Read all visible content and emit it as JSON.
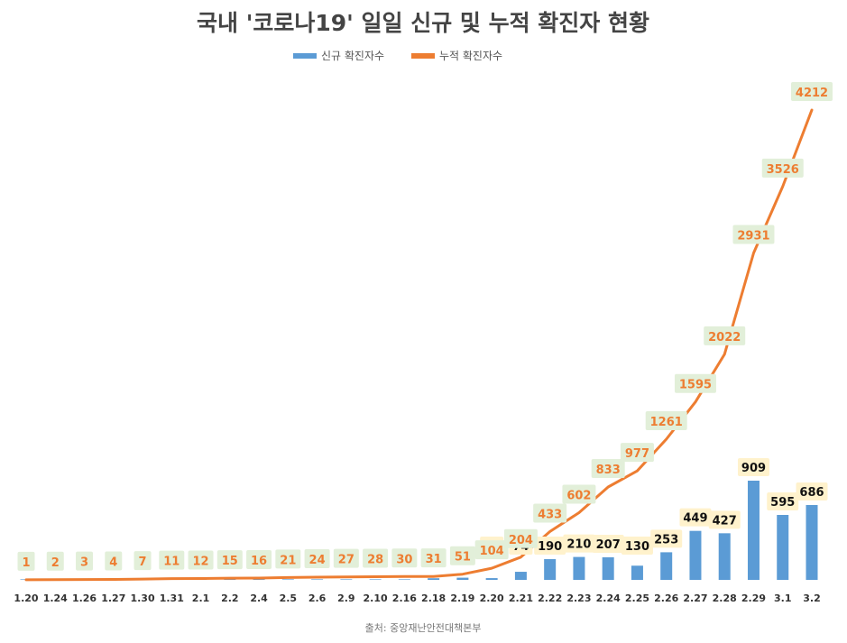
{
  "chart_data": {
    "type": "bar",
    "title": "국내 '코로나19' 일일 신규 및 누적 확진자 현황",
    "source": "출처: 중앙재난안전대책본부",
    "legend_position": "top-center",
    "grid": false,
    "categories": [
      "1.20",
      "1.24",
      "1.26",
      "1.27",
      "1.30",
      "1.31",
      "2.1",
      "2.2",
      "2.4",
      "2.5",
      "2.6",
      "2.9",
      "2.10",
      "2.16",
      "2.18",
      "2.19",
      "2.20",
      "2.21",
      "2.22",
      "2.23",
      "2.24",
      "2.25",
      "2.26",
      "2.27",
      "2.28",
      "2.29",
      "3.1",
      "3.2"
    ],
    "series": [
      {
        "name": "신규 확진자수",
        "kind": "bar",
        "color": "#5B9BD5",
        "values": [
          1,
          1,
          1,
          1,
          3,
          4,
          1,
          3,
          1,
          5,
          3,
          3,
          1,
          1,
          15,
          20,
          16,
          74,
          190,
          210,
          207,
          130,
          253,
          449,
          427,
          909,
          595,
          686
        ],
        "labels": [
          "",
          "",
          "",
          "",
          "",
          "",
          "",
          "",
          "",
          "",
          "",
          "",
          "",
          "",
          "",
          "",
          "16",
          "74",
          "190",
          "210",
          "207",
          "130",
          "253",
          "449",
          "427",
          "909",
          "595",
          "686"
        ]
      },
      {
        "name": "누적 확진자수",
        "kind": "line",
        "color": "#ED7D31",
        "values": [
          1,
          2,
          3,
          4,
          7,
          11,
          12,
          15,
          16,
          21,
          24,
          27,
          28,
          30,
          31,
          51,
          104,
          204,
          433,
          602,
          833,
          977,
          1261,
          1595,
          2022,
          2931,
          3526,
          4212
        ]
      }
    ],
    "label_box_color": "#E2EFD9",
    "new_label_box_color": "#FFF2CC"
  }
}
